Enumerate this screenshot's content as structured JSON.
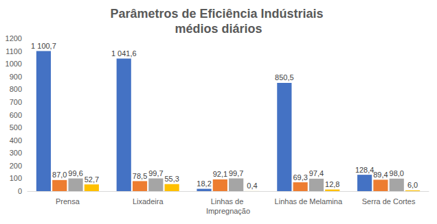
{
  "chart_data": {
    "type": "bar",
    "title": "Parâmetros de Eficiência Indústriais médios diários",
    "categories": [
      "Prensa",
      "Lixadeira",
      "Linhas de Impregnação",
      "Linhas de Melamina",
      "Serra de Cortes"
    ],
    "series": [
      {
        "color": "#4472c4",
        "values": [
          1100.7,
          1041.6,
          18.2,
          850.5,
          128.4
        ],
        "value_labels": [
          "1 100,7",
          "1 041,6",
          "18,2",
          "850,5",
          "128,4"
        ]
      },
      {
        "color": "#ed7d31",
        "values": [
          87.0,
          78.5,
          92.1,
          69.3,
          89.4
        ],
        "value_labels": [
          "87,0",
          "78,5",
          "92,1",
          "69,3",
          "89,4"
        ]
      },
      {
        "color": "#a5a5a5",
        "values": [
          99.6,
          99.7,
          99.7,
          97.4,
          98.0
        ],
        "value_labels": [
          "99,6",
          "99,7",
          "99,7",
          "97,4",
          "98,0"
        ]
      },
      {
        "color": "#ffc000",
        "values": [
          52.7,
          55.3,
          0.4,
          12.8,
          6.0
        ],
        "value_labels": [
          "52,7",
          "55,3",
          "0,4",
          "12,8",
          "6,0"
        ]
      }
    ],
    "ylim": [
      0,
      1200
    ],
    "yticks": [
      0,
      100,
      200,
      300,
      400,
      500,
      600,
      700,
      800,
      900,
      1000,
      1100,
      1200
    ],
    "grid": false,
    "data_labels": true
  }
}
